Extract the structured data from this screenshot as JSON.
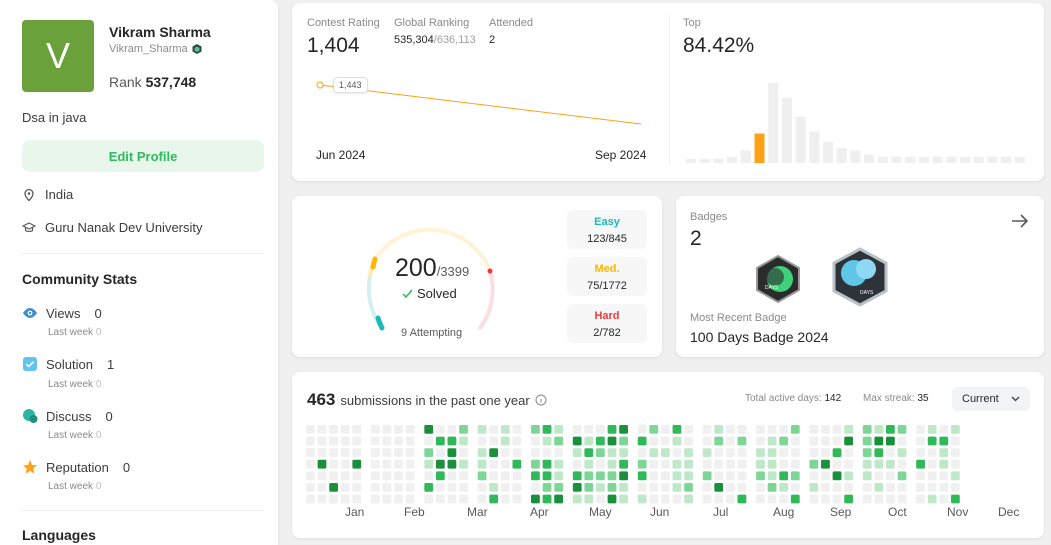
{
  "profile": {
    "avatar_letter": "V",
    "name": "Vikram Sharma",
    "username": "Vikram_Sharma",
    "rank_label": "Rank",
    "rank_value": "537,748",
    "bio": "Dsa in java",
    "edit_label": "Edit Profile",
    "location": "India",
    "school": "Guru Nanak Dev University"
  },
  "community": {
    "title": "Community Stats",
    "stats": [
      {
        "label": "Views",
        "value": "0",
        "sub_label": "Last week",
        "sub_value": "0"
      },
      {
        "label": "Solution",
        "value": "1",
        "sub_label": "Last week",
        "sub_value": "0"
      },
      {
        "label": "Discuss",
        "value": "0",
        "sub_label": "Last week",
        "sub_value": "0"
      },
      {
        "label": "Reputation",
        "value": "0",
        "sub_label": "Last week",
        "sub_value": "0"
      }
    ]
  },
  "languages_title": "Languages",
  "contest": {
    "rating_label": "Contest Rating",
    "rating_value": "1,404",
    "global_label": "Global Ranking",
    "global_value": "535,304",
    "global_total": "/636,113",
    "attended_label": "Attended",
    "attended_value": "2",
    "top_label": "Top",
    "top_value": "84.42%",
    "tooltip_value": "1,443",
    "x_start": "Jun 2024",
    "x_end": "Sep 2024"
  },
  "chart_data": [
    {
      "type": "line",
      "x": [
        "Jun 2024",
        "Sep 2024"
      ],
      "series": [
        {
          "values": [
            1443,
            1404
          ]
        }
      ]
    },
    {
      "type": "bar",
      "values": [
        2,
        2,
        2,
        3,
        6,
        14,
        38,
        31,
        22,
        15,
        10,
        7,
        6,
        4,
        3,
        3,
        3,
        3,
        3,
        3,
        3,
        3,
        3,
        3,
        3
      ],
      "highlight_index": 5
    }
  ],
  "solved": {
    "count": "200",
    "total": "/3399",
    "solved_label": "Solved",
    "attempting": "9 Attempting",
    "easy_label": "Easy",
    "easy_value": "123/845",
    "medium_label": "Med.",
    "medium_value": "75/1772",
    "hard_label": "Hard",
    "hard_value": "2/782"
  },
  "badges": {
    "title": "Badges",
    "count": "2",
    "recent_label": "Most Recent Badge",
    "recent_name": "100 Days Badge 2024",
    "badge1_text": "DAYS",
    "badge2_text": "DAYS"
  },
  "submissions": {
    "count": "463",
    "text": "submissions in the past one year",
    "active_label": "Total active days:",
    "active_value": "142",
    "streak_label": "Max streak:",
    "streak_value": "35",
    "dropdown": "Current",
    "months": [
      "Jan",
      "Feb",
      "Mar",
      "Apr",
      "May",
      "Jun",
      "Jul",
      "Aug",
      "Sep",
      "Oct",
      "Nov",
      "Dec"
    ]
  },
  "colors": {
    "brand_green": "#2cbb5d",
    "easy": "#1cbaba",
    "medium": "#ffb700",
    "hard": "#f63737",
    "bar_highlight": "#ffa116",
    "line": "#ffa116"
  }
}
